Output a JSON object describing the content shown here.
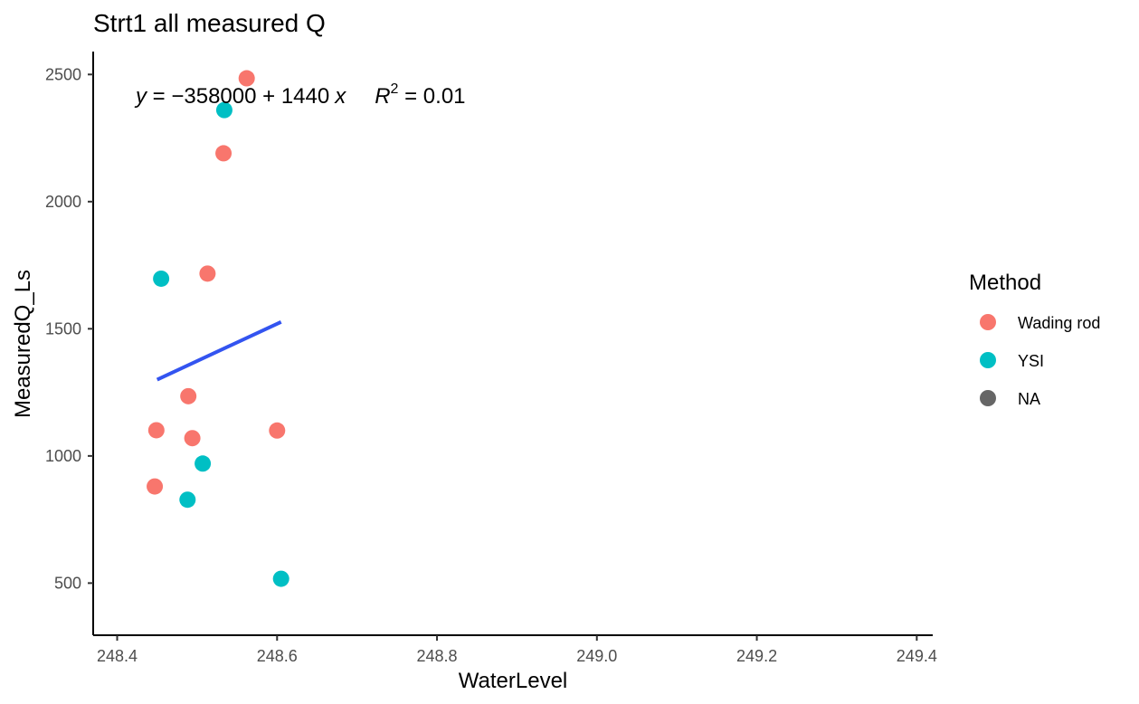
{
  "chart_data": {
    "type": "scatter",
    "title": "Strt1 all measured Q",
    "xlabel": "WaterLevel",
    "ylabel": "MeasuredQ_Ls",
    "xlim": [
      248.37,
      249.42
    ],
    "ylim": [
      295,
      2590
    ],
    "x_ticks": [
      248.4,
      248.6,
      248.8,
      249.0,
      249.2,
      249.4
    ],
    "x_tick_labels": [
      "248.4",
      "248.6",
      "248.8",
      "249.0",
      "249.2",
      "249.4"
    ],
    "y_ticks": [
      500,
      1000,
      1500,
      2000,
      2500
    ],
    "y_tick_labels": [
      "500",
      "1000",
      "1500",
      "2000",
      "2500"
    ],
    "grid": false,
    "legend": {
      "title": "Method",
      "placement": "right",
      "entries": [
        {
          "label": "Wading rod",
          "color": "#F8766D"
        },
        {
          "label": "YSI",
          "color": "#00BFC4"
        },
        {
          "label": "NA",
          "color": "#666666"
        }
      ]
    },
    "series": [
      {
        "name": "Wading rod",
        "color": "#F8766D",
        "points": [
          {
            "x": 248.562,
            "y": 2485
          },
          {
            "x": 248.533,
            "y": 2190
          },
          {
            "x": 248.513,
            "y": 1717
          },
          {
            "x": 248.489,
            "y": 1235
          },
          {
            "x": 248.449,
            "y": 1101
          },
          {
            "x": 248.494,
            "y": 1070
          },
          {
            "x": 248.6,
            "y": 1100
          },
          {
            "x": 248.447,
            "y": 880
          }
        ]
      },
      {
        "name": "YSI",
        "color": "#00BFC4",
        "points": [
          {
            "x": 248.534,
            "y": 2360
          },
          {
            "x": 248.455,
            "y": 1697
          },
          {
            "x": 248.507,
            "y": 970
          },
          {
            "x": 248.488,
            "y": 828
          },
          {
            "x": 248.605,
            "y": 517
          }
        ]
      }
    ],
    "regression_line": {
      "color": "#3354F0",
      "x": [
        248.45,
        248.605
      ],
      "y": [
        1300,
        1527
      ]
    },
    "annotation": {
      "y_var": "y",
      "equals": " = ",
      "rhs": "−358000 + 1440",
      "x_var": "x",
      "r_var": "R",
      "r_exp": "2",
      "r_value": " = 0.01"
    }
  }
}
